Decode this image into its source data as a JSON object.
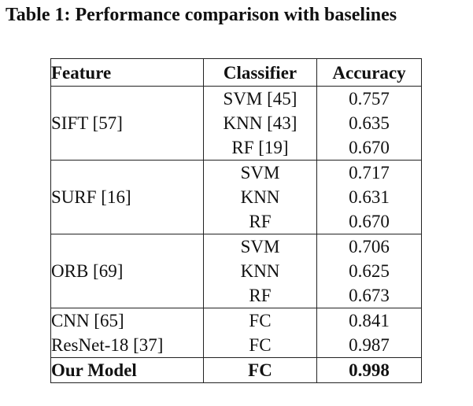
{
  "caption": "Table 1: Performance comparison with baselines",
  "table": {
    "headers": {
      "feature": "Feature",
      "classifier": "Classifier",
      "accuracy": "Accuracy"
    },
    "groups": [
      {
        "feature": "SIFT [57]",
        "rows": [
          {
            "classifier": "SVM [45]",
            "accuracy": "0.757"
          },
          {
            "classifier": "KNN [43]",
            "accuracy": "0.635"
          },
          {
            "classifier": "RF [19]",
            "accuracy": "0.670"
          }
        ]
      },
      {
        "feature": "SURF [16]",
        "rows": [
          {
            "classifier": "SVM",
            "accuracy": "0.717"
          },
          {
            "classifier": "KNN",
            "accuracy": "0.631"
          },
          {
            "classifier": "RF",
            "accuracy": "0.670"
          }
        ]
      },
      {
        "feature": "ORB [69]",
        "rows": [
          {
            "classifier": "SVM",
            "accuracy": "0.706"
          },
          {
            "classifier": "KNN",
            "accuracy": "0.625"
          },
          {
            "classifier": "RF",
            "accuracy": "0.673"
          }
        ]
      }
    ],
    "deep_rows": [
      {
        "feature": "CNN [65]",
        "classifier": "FC",
        "accuracy": "0.841"
      },
      {
        "feature": "ResNet-18 [37]",
        "classifier": "FC",
        "accuracy": "0.987"
      }
    ],
    "ours": {
      "feature": "Our Model",
      "classifier": "FC",
      "accuracy": "0.998"
    }
  }
}
